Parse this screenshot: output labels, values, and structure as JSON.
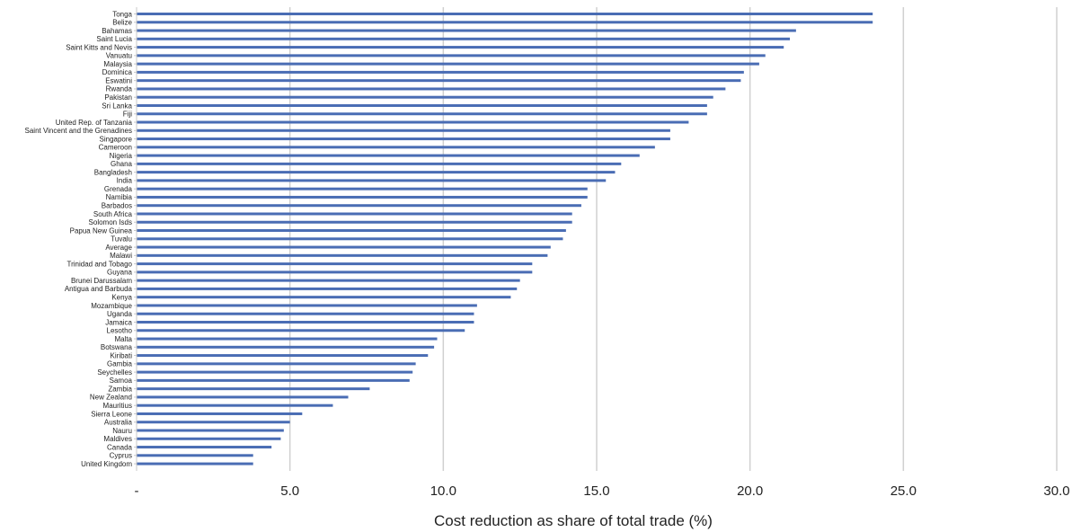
{
  "chart_data": {
    "type": "bar",
    "orientation": "horizontal",
    "title": "",
    "xlabel": "Cost reduction as share of total trade (%)",
    "ylabel": "",
    "xlim": [
      0,
      30
    ],
    "x_ticks": [
      0,
      5,
      10,
      15,
      20,
      25,
      30
    ],
    "x_tick_labels": [
      "-",
      "5.0",
      "10.0",
      "15.0",
      "20.0",
      "25.0",
      "30.0"
    ],
    "grid": true,
    "legend": "none",
    "bar_color": "#4a6db4",
    "grid_color": "#d0d0d0",
    "categories": [
      "Tonga",
      "Belize",
      "Bahamas",
      "Saint Lucia",
      "Saint Kitts and Nevis",
      "Vanuatu",
      "Malaysia",
      "Dominica",
      "Eswatini",
      "Rwanda",
      "Pakistan",
      "Sri Lanka",
      "Fiji",
      "United Rep. of Tanzania",
      "Saint  Vincent and the Grenadines",
      "Singapore",
      "Cameroon",
      "Nigeria",
      "Ghana",
      "Bangladesh",
      "India",
      "Grenada",
      "Namibia",
      "Barbados",
      "South Africa",
      "Solomon Isds",
      "Papua New Guinea",
      "Tuvalu",
      "Average",
      "Malawi",
      "Trinidad and Tobago",
      "Guyana",
      "Brunei Darussalam",
      "Antigua and Barbuda",
      "Kenya",
      "Mozambique",
      "Uganda",
      "Jamaica",
      "Lesotho",
      "Malta",
      "Botswana",
      "Kiribati",
      "Gambia",
      "Seychelles",
      "Samoa",
      "Zambia",
      "New Zealand",
      "Mauritius",
      "Sierra Leone",
      "Australia",
      "Nauru",
      "Maldives",
      "Canada",
      "Cyprus",
      "United Kingdom"
    ],
    "values": [
      24.0,
      24.0,
      21.5,
      21.3,
      21.1,
      20.5,
      20.3,
      19.8,
      19.7,
      19.2,
      18.8,
      18.6,
      18.6,
      18.0,
      17.4,
      17.4,
      16.9,
      16.4,
      15.8,
      15.6,
      15.3,
      14.7,
      14.7,
      14.5,
      14.2,
      14.2,
      14.0,
      13.9,
      13.5,
      13.4,
      12.9,
      12.9,
      12.5,
      12.4,
      12.2,
      11.1,
      11.0,
      11.0,
      10.7,
      9.8,
      9.7,
      9.5,
      9.1,
      9.0,
      8.9,
      7.6,
      6.9,
      6.4,
      5.4,
      5.0,
      4.8,
      4.7,
      4.4,
      3.8,
      3.8
    ]
  }
}
